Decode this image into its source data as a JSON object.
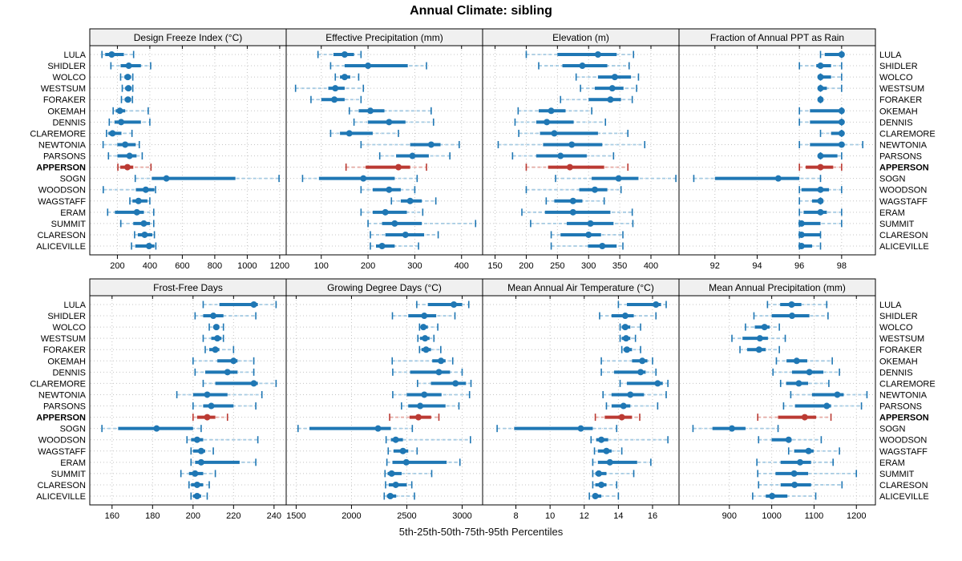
{
  "title": "Annual Climate: sibling",
  "caption": "5th-25th-50th-75th-95th Percentiles",
  "percentiles_shown": [
    5,
    25,
    50,
    75,
    95
  ],
  "stations": [
    "LULA",
    "SHIDLER",
    "WOLCO",
    "WESTSUM",
    "FORAKER",
    "OKEMAH",
    "DENNIS",
    "CLAREMORE",
    "NEWTONIA",
    "PARSONS",
    "APPERSON",
    "SOGN",
    "WOODSON",
    "WAGSTAFF",
    "ERAM",
    "SUMMIT",
    "CLARESON",
    "ALICEVILLE"
  ],
  "highlight_station": "APPERSON",
  "colors": {
    "series_blue": "#1f77b4",
    "series_blue_light": "#a6cbe3",
    "highlight_red": "#bb3a33",
    "highlight_red_light": "#e5a9a3",
    "grid": "#c4c4c4",
    "strip_bg": "#f0f0f0",
    "border": "#000000",
    "text": "#000000"
  },
  "chart_data": [
    {
      "type": "dot-interval",
      "title": "Design Freeze Index (°C)",
      "xlim": [
        30,
        1240
      ],
      "ticks": [
        200,
        400,
        600,
        800,
        1000,
        1200
      ],
      "values": [
        [
          105,
          125,
          165,
          240,
          300
        ],
        [
          160,
          220,
          270,
          345,
          405
        ],
        [
          220,
          243,
          264,
          285,
          295
        ],
        [
          230,
          248,
          268,
          288,
          295
        ],
        [
          225,
          245,
          265,
          285,
          293
        ],
        [
          174,
          190,
          215,
          248,
          390
        ],
        [
          150,
          182,
          223,
          345,
          400
        ],
        [
          133,
          145,
          170,
          225,
          290
        ],
        [
          112,
          200,
          248,
          313,
          335
        ],
        [
          145,
          200,
          275,
          318,
          353
        ],
        [
          203,
          218,
          262,
          298,
          407
        ],
        [
          310,
          412,
          502,
          927,
          1196
        ],
        [
          113,
          314,
          375,
          428,
          435
        ],
        [
          277,
          293,
          330,
          385,
          400
        ],
        [
          140,
          185,
          320,
          363,
          424
        ],
        [
          221,
          298,
          363,
          401,
          424
        ],
        [
          306,
          326,
          368,
          415,
          428
        ],
        [
          287,
          310,
          395,
          428,
          437
        ]
      ]
    },
    {
      "type": "dot-interval",
      "title": "Effective Precipitation (mm)",
      "xlim": [
        25,
        445
      ],
      "ticks": [
        100,
        200,
        300,
        400
      ],
      "values": [
        [
          93,
          126,
          150,
          170,
          185
        ],
        [
          120,
          150,
          200,
          285,
          325
        ],
        [
          130,
          140,
          150,
          162,
          180
        ],
        [
          45,
          115,
          130,
          150,
          190
        ],
        [
          78,
          100,
          128,
          150,
          185
        ],
        [
          160,
          180,
          205,
          235,
          335
        ],
        [
          170,
          200,
          245,
          280,
          340
        ],
        [
          120,
          140,
          160,
          210,
          265
        ],
        [
          185,
          290,
          335,
          355,
          395
        ],
        [
          225,
          260,
          295,
          330,
          375
        ],
        [
          153,
          195,
          265,
          290,
          325
        ],
        [
          60,
          95,
          190,
          257,
          305
        ],
        [
          185,
          210,
          245,
          270,
          300
        ],
        [
          250,
          270,
          290,
          315,
          345
        ],
        [
          185,
          210,
          237,
          283,
          317
        ],
        [
          200,
          230,
          257,
          315,
          430
        ],
        [
          205,
          237,
          280,
          320,
          350
        ],
        [
          205,
          217,
          230,
          257,
          308
        ]
      ]
    },
    {
      "type": "dot-interval",
      "title": "Elevation (m)",
      "xlim": [
        130,
        445
      ],
      "ticks": [
        150,
        200,
        250,
        300,
        350,
        400
      ],
      "values": [
        [
          200,
          250,
          315,
          345,
          372
        ],
        [
          220,
          258,
          290,
          330,
          365
        ],
        [
          280,
          315,
          342,
          368,
          380
        ],
        [
          287,
          310,
          338,
          356,
          377
        ],
        [
          255,
          300,
          335,
          352,
          370
        ],
        [
          187,
          220,
          240,
          263,
          305
        ],
        [
          182,
          216,
          233,
          276,
          327
        ],
        [
          188,
          222,
          245,
          315,
          363
        ],
        [
          155,
          227,
          273,
          322,
          390
        ],
        [
          178,
          216,
          255,
          297,
          340
        ],
        [
          200,
          235,
          270,
          325,
          363
        ],
        [
          247,
          305,
          348,
          380,
          440
        ],
        [
          200,
          285,
          310,
          330,
          352
        ],
        [
          232,
          245,
          275,
          290,
          325
        ],
        [
          193,
          230,
          275,
          335,
          370
        ],
        [
          207,
          265,
          303,
          340,
          371
        ],
        [
          240,
          255,
          300,
          320,
          355
        ],
        [
          240,
          299,
          322,
          345,
          355
        ]
      ]
    },
    {
      "type": "dot-interval",
      "title": "Fraction of Annual PPT as Rain",
      "xlim": [
        90.3,
        99.6
      ],
      "ticks": [
        92,
        94,
        96,
        98
      ],
      "values": [
        [
          97,
          97.2,
          98,
          98,
          98
        ],
        [
          96,
          96.8,
          97,
          97.5,
          98
        ],
        [
          97,
          97,
          97,
          97.5,
          98
        ],
        [
          97,
          97,
          97,
          97.3,
          98
        ],
        [
          97,
          97,
          97,
          97,
          97
        ],
        [
          96,
          96.5,
          98,
          98,
          98
        ],
        [
          96,
          96.5,
          98,
          98,
          98
        ],
        [
          97,
          97.5,
          98,
          98,
          98
        ],
        [
          96,
          96.5,
          98,
          98,
          99
        ],
        [
          97,
          97,
          97,
          97.8,
          98
        ],
        [
          96,
          96.3,
          97,
          97.6,
          98
        ],
        [
          91,
          92,
          95,
          96,
          97
        ],
        [
          96,
          96.1,
          97,
          97.4,
          98
        ],
        [
          96,
          96.6,
          97,
          97,
          97
        ],
        [
          96,
          96.2,
          97,
          97.3,
          98
        ],
        [
          96,
          96,
          96.1,
          97,
          98
        ],
        [
          96,
          96,
          96.1,
          97,
          97
        ],
        [
          96,
          96,
          96.1,
          96.6,
          97
        ]
      ]
    },
    {
      "type": "dot-interval",
      "title": "Frost-Free Days",
      "xlim": [
        149,
        246
      ],
      "ticks": [
        160,
        180,
        200,
        220,
        240
      ],
      "values": [
        [
          205,
          213,
          230,
          232,
          241
        ],
        [
          201,
          205,
          210,
          215,
          231
        ],
        [
          208,
          210,
          211.5,
          213,
          215
        ],
        [
          205,
          209,
          212,
          214,
          215
        ],
        [
          206,
          208,
          211,
          213,
          220
        ],
        [
          200,
          212,
          220,
          222,
          230
        ],
        [
          201,
          206,
          217,
          222,
          230
        ],
        [
          205,
          211,
          230,
          232,
          241
        ],
        [
          192,
          200,
          207,
          217,
          234
        ],
        [
          200,
          205,
          209,
          220,
          231
        ],
        [
          200,
          202,
          207,
          211,
          217
        ],
        [
          155,
          163,
          182,
          200,
          204
        ],
        [
          197,
          199,
          202,
          205,
          232
        ],
        [
          199,
          200,
          204,
          206,
          210
        ],
        [
          199,
          201,
          204,
          223,
          231
        ],
        [
          194,
          198,
          201,
          205,
          211
        ],
        [
          198,
          199,
          202,
          205,
          208
        ],
        [
          199,
          200,
          202,
          204,
          207
        ]
      ]
    },
    {
      "type": "dot-interval",
      "title": "Growing Degree Days (°C)",
      "xlim": [
        1410,
        3185
      ],
      "ticks": [
        1500,
        2000,
        2500,
        3000
      ],
      "values": [
        [
          2590,
          2690,
          2925,
          3000,
          3060
        ],
        [
          2370,
          2513,
          2658,
          2766,
          2935
        ],
        [
          2615,
          2630,
          2650,
          2690,
          2780
        ],
        [
          2600,
          2620,
          2665,
          2705,
          2745
        ],
        [
          2615,
          2633,
          2674,
          2718,
          2807
        ],
        [
          2368,
          2730,
          2809,
          2850,
          2915
        ],
        [
          2373,
          2530,
          2790,
          2891,
          3000
        ],
        [
          2597,
          2718,
          2940,
          3035,
          3080
        ],
        [
          2373,
          2500,
          2658,
          2814,
          3067
        ],
        [
          2452,
          2513,
          2621,
          2850,
          2971
        ],
        [
          2345,
          2525,
          2605,
          2720,
          2790
        ],
        [
          1517,
          1620,
          2240,
          2356,
          2550
        ],
        [
          2313,
          2356,
          2400,
          2465,
          3075
        ],
        [
          2332,
          2380,
          2465,
          2513,
          2593
        ],
        [
          2320,
          2370,
          2495,
          2860,
          2980
        ],
        [
          2303,
          2327,
          2363,
          2453,
          2725
        ],
        [
          2308,
          2337,
          2400,
          2500,
          2545
        ],
        [
          2296,
          2320,
          2351,
          2404,
          2569
        ]
      ]
    },
    {
      "type": "dot-interval",
      "title": "Mean Annual Air Temperature (°C)",
      "xlim": [
        6.05,
        17.55
      ],
      "ticks": [
        8,
        10,
        12,
        14,
        16
      ],
      "values": [
        [
          14.0,
          14.5,
          16.2,
          16.5,
          16.8
        ],
        [
          12.9,
          13.6,
          14.4,
          14.9,
          16.2
        ],
        [
          14.1,
          14.2,
          14.4,
          14.7,
          15.3
        ],
        [
          14.1,
          14.2,
          14.45,
          14.7,
          15.0
        ],
        [
          14.2,
          14.3,
          14.5,
          14.8,
          15.3
        ],
        [
          13.0,
          14.8,
          15.4,
          15.7,
          16.0
        ],
        [
          13.0,
          13.75,
          15.3,
          15.6,
          16.2
        ],
        [
          14.1,
          14.5,
          16.3,
          16.6,
          16.9
        ],
        [
          13.1,
          13.6,
          14.7,
          15.5,
          16.8
        ],
        [
          13.3,
          13.6,
          14.3,
          14.7,
          16.3
        ],
        [
          12.65,
          13.2,
          14.2,
          14.8,
          15.25
        ],
        [
          6.9,
          7.9,
          11.8,
          12.5,
          13.9
        ],
        [
          12.4,
          12.7,
          13.0,
          13.4,
          16.9
        ],
        [
          12.6,
          12.8,
          13.3,
          13.6,
          14.2
        ],
        [
          12.5,
          12.8,
          13.5,
          15.1,
          15.9
        ],
        [
          12.5,
          12.65,
          12.85,
          13.3,
          14.9
        ],
        [
          12.5,
          12.65,
          13.0,
          13.3,
          13.9
        ],
        [
          12.3,
          12.5,
          12.65,
          13.0,
          14.0
        ]
      ]
    },
    {
      "type": "dot-interval",
      "title": "Mean Annual Precipitation (mm)",
      "xlim": [
        781,
        1245
      ],
      "ticks": [
        900,
        1000,
        1100,
        1200
      ],
      "values": [
        [
          990,
          1020,
          1047,
          1070,
          1130
        ],
        [
          958,
          1000,
          1048,
          1089,
          1133
        ],
        [
          938,
          960,
          983,
          995,
          1018
        ],
        [
          906,
          931,
          972,
          991,
          1032
        ],
        [
          925,
          942,
          970,
          986,
          1018
        ],
        [
          1011,
          1035,
          1059,
          1084,
          1143
        ],
        [
          1003,
          1048,
          1089,
          1122,
          1160
        ],
        [
          1021,
          1034,
          1064,
          1086,
          1135
        ],
        [
          1045,
          1095,
          1155,
          1170,
          1225
        ],
        [
          1028,
          1055,
          1130,
          1140,
          1212
        ],
        [
          967,
          1015,
          1078,
          1105,
          1140
        ],
        [
          814,
          860,
          906,
          938,
          1015
        ],
        [
          969,
          1000,
          1040,
          1045,
          1117
        ],
        [
          1040,
          1053,
          1087,
          1099,
          1160
        ],
        [
          965,
          1021,
          1067,
          1093,
          1145
        ],
        [
          967,
          1009,
          1053,
          1086,
          1200
        ],
        [
          969,
          1021,
          1054,
          1093,
          1166
        ],
        [
          955,
          986,
          1001,
          1037,
          1104
        ]
      ]
    }
  ]
}
